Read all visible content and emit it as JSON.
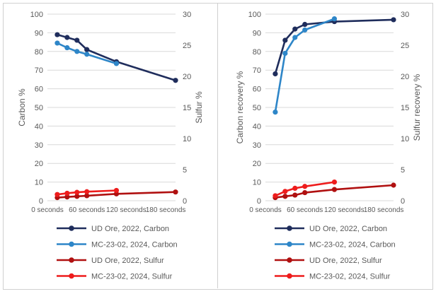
{
  "chart_data": [
    {
      "type": "line",
      "ylabel": "Carbon %",
      "y2label": "Sulfur %",
      "x_ticks": [
        "0 seconds",
        "60 seconds",
        "120 seconds",
        "180 seconds"
      ],
      "x_tick_values": [
        0,
        60,
        120,
        180
      ],
      "xlim": [
        0,
        195
      ],
      "ylim": [
        0,
        100
      ],
      "y_ticks": [
        "0",
        "10",
        "20",
        "30",
        "40",
        "50",
        "60",
        "70",
        "80",
        "90",
        "100"
      ],
      "y2lim": [
        0,
        30
      ],
      "y2_ticks": [
        "0",
        "5",
        "10",
        "15",
        "20",
        "25",
        "30"
      ],
      "legend_position": "bottom",
      "series": [
        {
          "name": "UD Ore, 2022, Carbon",
          "axis": "left",
          "color": "#1f2d5c",
          "x": [
            15,
            30,
            45,
            60,
            105,
            195
          ],
          "values": [
            89,
            87.5,
            86,
            81,
            74.5,
            64.5
          ]
        },
        {
          "name": "MC-23-02, 2024, Carbon",
          "axis": "left",
          "color": "#2e86c8",
          "x": [
            15,
            30,
            45,
            60,
            105
          ],
          "values": [
            84.5,
            82,
            80,
            78.5,
            73.5
          ]
        },
        {
          "name": "UD Ore, 2022, Sulfur",
          "axis": "right",
          "color": "#b01010",
          "x": [
            15,
            30,
            45,
            60,
            105,
            195
          ],
          "values": [
            0.5,
            0.6,
            0.7,
            0.8,
            1.1,
            1.4
          ]
        },
        {
          "name": "MC-23-02, 2024, Sulfur",
          "axis": "right",
          "color": "#ee1c1c",
          "x": [
            15,
            30,
            45,
            60,
            105
          ],
          "values": [
            1.0,
            1.2,
            1.35,
            1.45,
            1.65
          ]
        }
      ]
    },
    {
      "type": "line",
      "ylabel": "Carbon recovery %",
      "y2label": "Sulfur recovery %",
      "x_ticks": [
        "0 seconds",
        "60 seconds",
        "120 seconds",
        "180 seconds"
      ],
      "x_tick_values": [
        0,
        60,
        120,
        180
      ],
      "xlim": [
        0,
        195
      ],
      "ylim": [
        0,
        100
      ],
      "y_ticks": [
        "0",
        "10",
        "20",
        "30",
        "40",
        "50",
        "60",
        "70",
        "80",
        "90",
        "100"
      ],
      "y2lim": [
        0,
        30
      ],
      "y2_ticks": [
        "0",
        "5",
        "10",
        "15",
        "20",
        "25",
        "30"
      ],
      "legend_position": "bottom",
      "series": [
        {
          "name": "UD Ore, 2022, Carbon",
          "axis": "left",
          "color": "#1f2d5c",
          "x": [
            15,
            30,
            45,
            60,
            105,
            195
          ],
          "values": [
            68,
            86,
            92,
            94.5,
            96,
            97
          ]
        },
        {
          "name": "MC-23-02, 2024, Carbon",
          "axis": "left",
          "color": "#2e86c8",
          "x": [
            15,
            30,
            45,
            60,
            105
          ],
          "values": [
            47.5,
            79,
            87.5,
            91.5,
            97.5
          ]
        },
        {
          "name": "UD Ore, 2022, Sulfur",
          "axis": "right",
          "color": "#b01010",
          "x": [
            15,
            30,
            45,
            60,
            105,
            195
          ],
          "values": [
            0.5,
            0.7,
            0.9,
            1.3,
            1.8,
            2.5
          ]
        },
        {
          "name": "MC-23-02, 2024, Sulfur",
          "axis": "right",
          "color": "#ee1c1c",
          "x": [
            15,
            30,
            45,
            60,
            105
          ],
          "values": [
            0.8,
            1.5,
            2.0,
            2.3,
            3.0
          ]
        }
      ]
    }
  ]
}
